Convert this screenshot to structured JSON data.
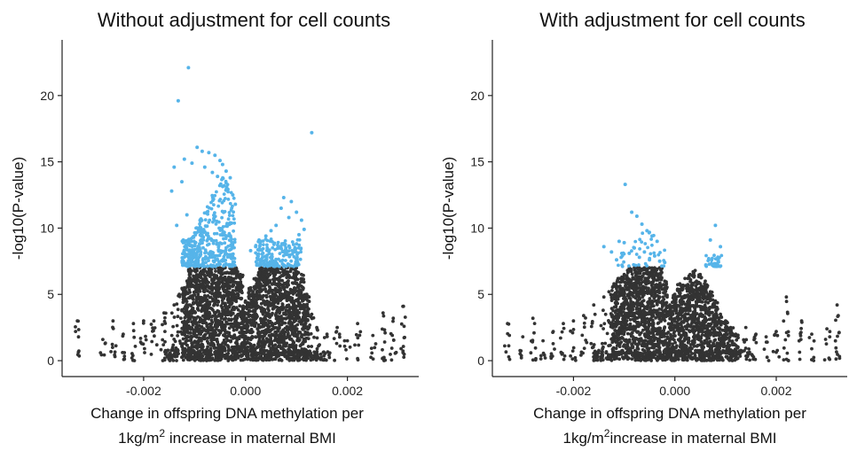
{
  "chart_data": [
    {
      "type": "scatter",
      "title": "Without adjustment for cell counts",
      "xlabel_line1": "Change in offspring DNA methylation per",
      "xlabel_line2_pre": "1kg/m",
      "xlabel_line2_sup": "2",
      "xlabel_line2_post": " increase in maternal BMI",
      "ylabel": "-log10(P-value)",
      "xlim": [
        -0.0036,
        0.0034
      ],
      "ylim": [
        -1.2,
        24.2
      ],
      "xticks": [
        -0.002,
        0.0,
        0.002
      ],
      "xtick_labels": [
        "-0.002",
        "0.000",
        "0.002"
      ],
      "yticks": [
        0,
        5,
        10,
        15,
        20
      ],
      "ytick_labels": [
        "0",
        "5",
        "10",
        "15",
        "20"
      ],
      "threshold": 7.0,
      "colors": {
        "significant": "#56b4e9",
        "other": "#333333"
      },
      "significant_points": {
        "x": [
          -0.00112,
          -0.00132,
          0.0013,
          -0.00095,
          -0.00085,
          -0.00072,
          -0.0006,
          -0.0005,
          -0.00045,
          -0.00038,
          -0.0003,
          -0.0012,
          -0.0014,
          -0.00125,
          -0.00105,
          -0.0008,
          -0.00065,
          -0.00055,
          -0.00042,
          -0.00025,
          -0.0002,
          0.00075,
          0.0009,
          0.001,
          0.0011,
          0.00115,
          0.0006,
          0.0005,
          0.0004,
          0.0003,
          0.0002,
          0.0001,
          0.00085,
          0.0007,
          0.00105,
          -0.00145,
          -0.00135,
          -0.00115
        ],
        "y": [
          22.1,
          19.6,
          17.2,
          16.1,
          15.8,
          15.7,
          15.5,
          15.1,
          14.8,
          14.3,
          13.8,
          15.2,
          14.6,
          13.5,
          14.9,
          14.6,
          14.2,
          13.9,
          13.2,
          12.5,
          11.8,
          12.3,
          12.0,
          11.2,
          10.6,
          9.9,
          10.2,
          9.8,
          9.4,
          9.0,
          8.6,
          8.3,
          10.8,
          11.5,
          9.5,
          12.8,
          10.2,
          11.0
        ]
      },
      "cloud_x": [
        -0.0033,
        -0.0028,
        -0.0026,
        -0.0024,
        -0.0022,
        -0.002,
        -0.0018,
        -0.0016,
        -0.0014,
        -0.0013,
        -0.0012,
        -0.0011,
        -0.001,
        -0.0009,
        -0.0008,
        -0.0007,
        -0.0006,
        -0.0005,
        -0.0004,
        -0.0003,
        -0.0002,
        -0.0001,
        0,
        0.0001,
        0.0002,
        0.0003,
        0.0004,
        0.0005,
        0.0006,
        0.0007,
        0.0008,
        0.0009,
        0.001,
        0.0011,
        0.0012,
        0.0013,
        0.0014,
        0.0016,
        0.0018,
        0.002,
        0.0022,
        0.0025,
        0.0027,
        0.0029,
        0.0031
      ],
      "cloud_ymax": [
        3.0,
        1.6,
        3.0,
        2.0,
        2.8,
        3.0,
        3.0,
        3.6,
        4.2,
        5.0,
        5.5,
        7.0,
        7.0,
        7.0,
        7.0,
        7.0,
        7.0,
        7.0,
        7.0,
        7.0,
        7.0,
        6.5,
        4.5,
        5.5,
        6.2,
        7.0,
        7.0,
        7.0,
        7.0,
        7.0,
        7.0,
        7.0,
        7.0,
        6.5,
        5.0,
        3.5,
        2.5,
        2.0,
        2.5,
        1.5,
        2.8,
        1.9,
        3.6,
        3.2,
        4.1
      ]
    },
    {
      "type": "scatter",
      "title": "With adjustment for cell counts",
      "xlabel_line1": "Change in offspring DNA methylation per",
      "xlabel_line2_pre": "1kg/m",
      "xlabel_line2_sup": "2",
      "xlabel_line2_post": "increase in maternal BMI",
      "ylabel": "-log10(P-value)",
      "xlim": [
        -0.0036,
        0.0034
      ],
      "ylim": [
        -1.2,
        24.2
      ],
      "xticks": [
        -0.002,
        0.0,
        0.002
      ],
      "xtick_labels": [
        "-0.002",
        "0.000",
        "0.002"
      ],
      "yticks": [
        0,
        5,
        10,
        15,
        20
      ],
      "ytick_labels": [
        "0",
        "5",
        "10",
        "15",
        "20"
      ],
      "threshold": 7.0,
      "colors": {
        "significant": "#56b4e9",
        "other": "#333333"
      },
      "significant_points": {
        "x": [
          -0.00098,
          -0.00085,
          -0.00075,
          -0.00065,
          -0.00055,
          -0.00045,
          -0.00035,
          -0.0014,
          -0.00125,
          -0.0011,
          -0.0009,
          -0.0008,
          -0.0007,
          -0.0006,
          -0.0005,
          -0.0004,
          -0.0003,
          -0.0002,
          0.0008,
          0.0007,
          0.0009,
          -0.00115,
          -0.001
        ],
        "y": [
          13.3,
          11.2,
          10.9,
          10.3,
          9.8,
          9.4,
          9.0,
          8.6,
          8.2,
          9.0,
          8.1,
          8.5,
          7.8,
          8.2,
          7.6,
          7.9,
          7.5,
          7.4,
          10.2,
          9.1,
          8.6,
          7.6,
          8.9
        ]
      },
      "cloud_x": [
        -0.0033,
        -0.003,
        -0.0028,
        -0.0026,
        -0.0024,
        -0.0022,
        -0.002,
        -0.0018,
        -0.0016,
        -0.0014,
        -0.0013,
        -0.0012,
        -0.0011,
        -0.001,
        -0.0009,
        -0.0008,
        -0.0007,
        -0.0006,
        -0.0005,
        -0.0004,
        -0.0003,
        -0.0002,
        -0.0001,
        0,
        0.0001,
        0.0002,
        0.0003,
        0.0004,
        0.0005,
        0.0006,
        0.0007,
        0.0008,
        0.0009,
        0.001,
        0.0011,
        0.0012,
        0.0014,
        0.0016,
        0.0018,
        0.002,
        0.0022,
        0.0025,
        0.0027,
        0.003,
        0.0032
      ],
      "cloud_ymax": [
        2.8,
        1.8,
        3.2,
        1.5,
        2.2,
        2.8,
        3.0,
        3.4,
        4.2,
        4.8,
        5.2,
        5.8,
        6.2,
        6.5,
        7.0,
        7.0,
        7.0,
        7.0,
        7.0,
        7.0,
        7.0,
        6.0,
        4.2,
        5.0,
        5.8,
        6.2,
        6.5,
        6.8,
        6.5,
        6.0,
        5.2,
        4.5,
        3.5,
        3.0,
        2.5,
        2.0,
        2.5,
        2.0,
        1.8,
        2.2,
        4.8,
        3.0,
        2.0,
        2.4,
        4.2
      ]
    }
  ]
}
